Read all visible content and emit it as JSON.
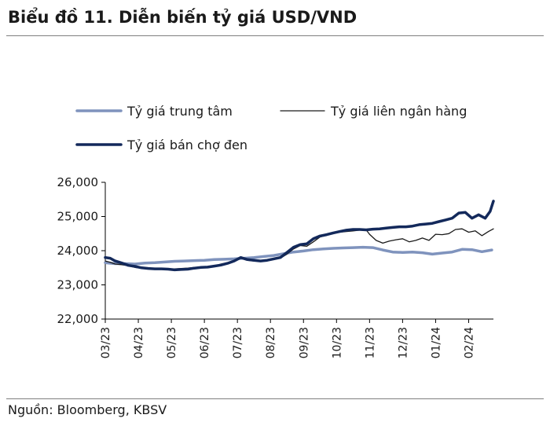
{
  "header": {
    "title": "Biểu đồ 11. Diễn biến tỷ giá USD/VND"
  },
  "footer": {
    "source": "Nguồn: Bloomberg, KBSV"
  },
  "chart_data": {
    "type": "line",
    "title": "",
    "xlabel": "",
    "ylabel": "",
    "ylim": [
      22000,
      26000
    ],
    "yticks": [
      "26,000",
      "25,000",
      "24,000",
      "23,000",
      "22,000"
    ],
    "ytick_values": [
      26000,
      25000,
      24000,
      23000,
      22000
    ],
    "xticks": [
      "03/23",
      "04/23",
      "05/23",
      "06/23",
      "07/23",
      "08/23",
      "09/23",
      "10/23",
      "11/23",
      "12/23",
      "01/24",
      "02/24"
    ],
    "grid": false,
    "legend_position": "top",
    "series": [
      {
        "name": "Tỷ giá trung  tâm",
        "color": "#7f93bd",
        "style": "thick",
        "x": [
          0,
          0.1,
          0.3,
          0.6,
          0.9,
          1.2,
          1.5,
          1.8,
          2.1,
          2.4,
          2.7,
          3.0,
          3.3,
          3.6,
          3.9,
          4.2,
          4.5,
          4.8,
          5.1,
          5.4,
          5.7,
          6.0,
          6.3,
          6.6,
          6.9,
          7.2,
          7.5,
          7.8,
          8.1,
          8.4,
          8.7,
          9.0,
          9.3,
          9.6,
          9.9,
          10.2,
          10.5,
          10.8,
          11.1,
          11.4,
          11.7
        ],
        "y": [
          23650,
          23640,
          23620,
          23620,
          23610,
          23640,
          23650,
          23670,
          23690,
          23700,
          23710,
          23720,
          23740,
          23750,
          23760,
          23780,
          23800,
          23830,
          23860,
          23910,
          23960,
          23990,
          24030,
          24050,
          24070,
          24080,
          24090,
          24100,
          24090,
          24020,
          23960,
          23950,
          23960,
          23940,
          23900,
          23930,
          23960,
          24040,
          24030,
          23970,
          24020
        ]
      },
      {
        "name": "Tỷ giá liên ngân hàng",
        "color": "#1a1a1a",
        "style": "thin",
        "x": [
          0,
          0.15,
          0.3,
          0.5,
          0.7,
          0.9,
          1.1,
          1.3,
          1.5,
          1.7,
          1.9,
          2.1,
          2.3,
          2.5,
          2.7,
          2.9,
          3.1,
          3.3,
          3.5,
          3.7,
          3.9,
          4.1,
          4.3,
          4.5,
          4.7,
          4.9,
          5.1,
          5.3,
          5.5,
          5.7,
          5.9,
          6.1,
          6.3,
          6.5,
          6.7,
          6.9,
          7.1,
          7.3,
          7.5,
          7.7,
          7.9,
          8.0,
          8.2,
          8.4,
          8.6,
          8.8,
          9.0,
          9.2,
          9.4,
          9.6,
          9.8,
          10.0,
          10.2,
          10.4,
          10.6,
          10.8,
          11.0,
          11.2,
          11.4,
          11.6,
          11.75
        ],
        "y": [
          23700,
          23660,
          23610,
          23590,
          23560,
          23510,
          23490,
          23490,
          23480,
          23470,
          23470,
          23470,
          23480,
          23490,
          23510,
          23520,
          23530,
          23550,
          23610,
          23650,
          23700,
          23780,
          23720,
          23700,
          23690,
          23720,
          23750,
          23780,
          23900,
          24050,
          24150,
          24130,
          24260,
          24400,
          24450,
          24500,
          24540,
          24560,
          24580,
          24600,
          24610,
          24480,
          24300,
          24220,
          24280,
          24320,
          24350,
          24260,
          24300,
          24370,
          24300,
          24480,
          24470,
          24500,
          24620,
          24640,
          24540,
          24580,
          24440,
          24560,
          24640
        ]
      },
      {
        "name": "Tỷ giá bán chợ đen",
        "color": "#13295b",
        "style": "thicker",
        "x": [
          0,
          0.15,
          0.3,
          0.5,
          0.7,
          0.9,
          1.1,
          1.3,
          1.5,
          1.7,
          1.9,
          2.1,
          2.3,
          2.5,
          2.7,
          2.9,
          3.1,
          3.3,
          3.5,
          3.7,
          3.9,
          4.1,
          4.3,
          4.5,
          4.7,
          4.9,
          5.1,
          5.3,
          5.5,
          5.7,
          5.9,
          6.1,
          6.3,
          6.5,
          6.7,
          6.9,
          7.1,
          7.3,
          7.5,
          7.7,
          7.9,
          8.1,
          8.3,
          8.5,
          8.7,
          8.9,
          9.1,
          9.3,
          9.5,
          9.7,
          9.9,
          10.1,
          10.3,
          10.5,
          10.7,
          10.9,
          11.1,
          11.3,
          11.5,
          11.65,
          11.75
        ],
        "y": [
          23800,
          23780,
          23700,
          23640,
          23570,
          23540,
          23500,
          23480,
          23470,
          23470,
          23460,
          23440,
          23450,
          23460,
          23490,
          23510,
          23520,
          23550,
          23580,
          23630,
          23700,
          23800,
          23740,
          23720,
          23700,
          23720,
          23760,
          23800,
          23950,
          24100,
          24180,
          24200,
          24350,
          24430,
          24470,
          24520,
          24560,
          24600,
          24620,
          24620,
          24610,
          24630,
          24640,
          24660,
          24680,
          24700,
          24700,
          24720,
          24760,
          24780,
          24800,
          24850,
          24900,
          24950,
          25100,
          25120,
          24950,
          25050,
          24950,
          25150,
          25450
        ]
      }
    ]
  }
}
